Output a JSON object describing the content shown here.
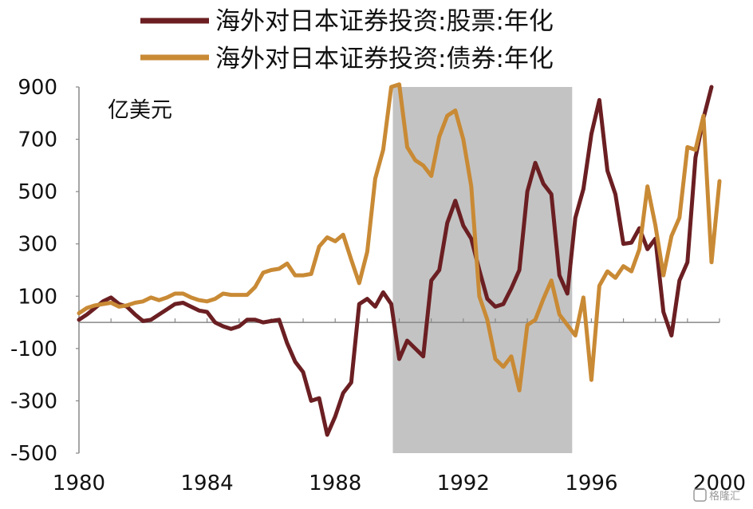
{
  "chart_data": {
    "type": "line",
    "unit_label": "亿美元",
    "ylim": [
      -500,
      900
    ],
    "xlim": [
      1980,
      2000
    ],
    "y_ticks": [
      900,
      700,
      500,
      300,
      100,
      -100,
      -300,
      -500
    ],
    "x_ticks": [
      1980,
      1984,
      1988,
      1992,
      1996,
      2000
    ],
    "grid": false,
    "legend_position": "top",
    "shaded_period": [
      1989.8,
      1995.4
    ],
    "shaded_color": "#c3c3c3",
    "series": [
      {
        "name": "海外对日本证券投资:股票:年化",
        "color": "#6b1f22",
        "points": [
          [
            1980.0,
            10
          ],
          [
            1980.25,
            30
          ],
          [
            1980.5,
            55
          ],
          [
            1980.75,
            80
          ],
          [
            1981.0,
            95
          ],
          [
            1981.25,
            70
          ],
          [
            1981.5,
            60
          ],
          [
            1981.75,
            30
          ],
          [
            1982.0,
            5
          ],
          [
            1982.25,
            10
          ],
          [
            1982.5,
            30
          ],
          [
            1982.75,
            50
          ],
          [
            1983.0,
            70
          ],
          [
            1983.25,
            75
          ],
          [
            1983.5,
            60
          ],
          [
            1983.75,
            45
          ],
          [
            1984.0,
            40
          ],
          [
            1984.25,
            0
          ],
          [
            1984.5,
            -15
          ],
          [
            1984.75,
            -25
          ],
          [
            1985.0,
            -15
          ],
          [
            1985.25,
            10
          ],
          [
            1985.5,
            10
          ],
          [
            1985.75,
            0
          ],
          [
            1986.0,
            5
          ],
          [
            1986.25,
            10
          ],
          [
            1986.5,
            -80
          ],
          [
            1986.75,
            -150
          ],
          [
            1987.0,
            -190
          ],
          [
            1987.25,
            -300
          ],
          [
            1987.5,
            -290
          ],
          [
            1987.75,
            -430
          ],
          [
            1988.0,
            -360
          ],
          [
            1988.25,
            -270
          ],
          [
            1988.5,
            -230
          ],
          [
            1988.75,
            70
          ],
          [
            1989.0,
            90
          ],
          [
            1989.25,
            60
          ],
          [
            1989.5,
            115
          ],
          [
            1989.75,
            70
          ],
          [
            1990.0,
            -140
          ],
          [
            1990.25,
            -70
          ],
          [
            1990.5,
            -100
          ],
          [
            1990.75,
            -130
          ],
          [
            1991.0,
            160
          ],
          [
            1991.25,
            200
          ],
          [
            1991.5,
            380
          ],
          [
            1991.75,
            465
          ],
          [
            1992.0,
            370
          ],
          [
            1992.25,
            320
          ],
          [
            1992.5,
            200
          ],
          [
            1992.75,
            90
          ],
          [
            1993.0,
            60
          ],
          [
            1993.25,
            70
          ],
          [
            1993.5,
            130
          ],
          [
            1993.75,
            200
          ],
          [
            1994.0,
            500
          ],
          [
            1994.25,
            610
          ],
          [
            1994.5,
            530
          ],
          [
            1994.75,
            490
          ],
          [
            1995.0,
            180
          ],
          [
            1995.25,
            110
          ],
          [
            1995.5,
            400
          ],
          [
            1995.75,
            510
          ],
          [
            1996.0,
            720
          ],
          [
            1996.25,
            850
          ],
          [
            1996.5,
            580
          ],
          [
            1996.75,
            490
          ],
          [
            1997.0,
            300
          ],
          [
            1997.25,
            305
          ],
          [
            1997.5,
            360
          ],
          [
            1997.75,
            280
          ],
          [
            1998.0,
            320
          ],
          [
            1998.25,
            40
          ],
          [
            1998.5,
            -50
          ],
          [
            1998.75,
            160
          ],
          [
            1999.0,
            230
          ],
          [
            1999.25,
            630
          ],
          [
            1999.5,
            780
          ],
          [
            1999.75,
            900
          ]
        ]
      },
      {
        "name": "海外对日本证券投资:债券:年化",
        "color": "#c98a35",
        "points": [
          [
            1980.0,
            35
          ],
          [
            1980.25,
            55
          ],
          [
            1980.5,
            65
          ],
          [
            1980.75,
            70
          ],
          [
            1981.0,
            75
          ],
          [
            1981.25,
            60
          ],
          [
            1981.5,
            65
          ],
          [
            1981.75,
            75
          ],
          [
            1982.0,
            80
          ],
          [
            1982.25,
            95
          ],
          [
            1982.5,
            85
          ],
          [
            1982.75,
            95
          ],
          [
            1983.0,
            110
          ],
          [
            1983.25,
            110
          ],
          [
            1983.5,
            95
          ],
          [
            1983.75,
            85
          ],
          [
            1984.0,
            80
          ],
          [
            1984.25,
            90
          ],
          [
            1984.5,
            110
          ],
          [
            1984.75,
            105
          ],
          [
            1985.0,
            105
          ],
          [
            1985.25,
            105
          ],
          [
            1985.5,
            135
          ],
          [
            1985.75,
            190
          ],
          [
            1986.0,
            200
          ],
          [
            1986.25,
            205
          ],
          [
            1986.5,
            225
          ],
          [
            1986.75,
            180
          ],
          [
            1987.0,
            180
          ],
          [
            1987.25,
            185
          ],
          [
            1987.5,
            290
          ],
          [
            1987.75,
            325
          ],
          [
            1988.0,
            310
          ],
          [
            1988.25,
            335
          ],
          [
            1988.5,
            240
          ],
          [
            1988.75,
            150
          ],
          [
            1989.0,
            270
          ],
          [
            1989.25,
            550
          ],
          [
            1989.5,
            660
          ],
          [
            1989.75,
            900
          ],
          [
            1990.0,
            910
          ],
          [
            1990.25,
            670
          ],
          [
            1990.5,
            620
          ],
          [
            1990.75,
            600
          ],
          [
            1991.0,
            560
          ],
          [
            1991.25,
            710
          ],
          [
            1991.5,
            790
          ],
          [
            1991.75,
            810
          ],
          [
            1992.0,
            700
          ],
          [
            1992.25,
            520
          ],
          [
            1992.5,
            100
          ],
          [
            1992.75,
            10
          ],
          [
            1993.0,
            -140
          ],
          [
            1993.25,
            -170
          ],
          [
            1993.5,
            -130
          ],
          [
            1993.75,
            -260
          ],
          [
            1994.0,
            -10
          ],
          [
            1994.25,
            10
          ],
          [
            1994.5,
            90
          ],
          [
            1994.75,
            160
          ],
          [
            1995.0,
            30
          ],
          [
            1995.25,
            -10
          ],
          [
            1995.5,
            -50
          ],
          [
            1995.75,
            95
          ],
          [
            1996.0,
            -220
          ],
          [
            1996.25,
            140
          ],
          [
            1996.5,
            195
          ],
          [
            1996.75,
            170
          ],
          [
            1997.0,
            215
          ],
          [
            1997.25,
            195
          ],
          [
            1997.5,
            280
          ],
          [
            1997.75,
            520
          ],
          [
            1998.0,
            370
          ],
          [
            1998.25,
            180
          ],
          [
            1998.5,
            330
          ],
          [
            1998.75,
            400
          ],
          [
            1999.0,
            670
          ],
          [
            1999.25,
            660
          ],
          [
            1999.5,
            790
          ],
          [
            1999.75,
            230
          ],
          [
            2000.0,
            540
          ]
        ]
      }
    ]
  },
  "watermark": "格隆汇"
}
